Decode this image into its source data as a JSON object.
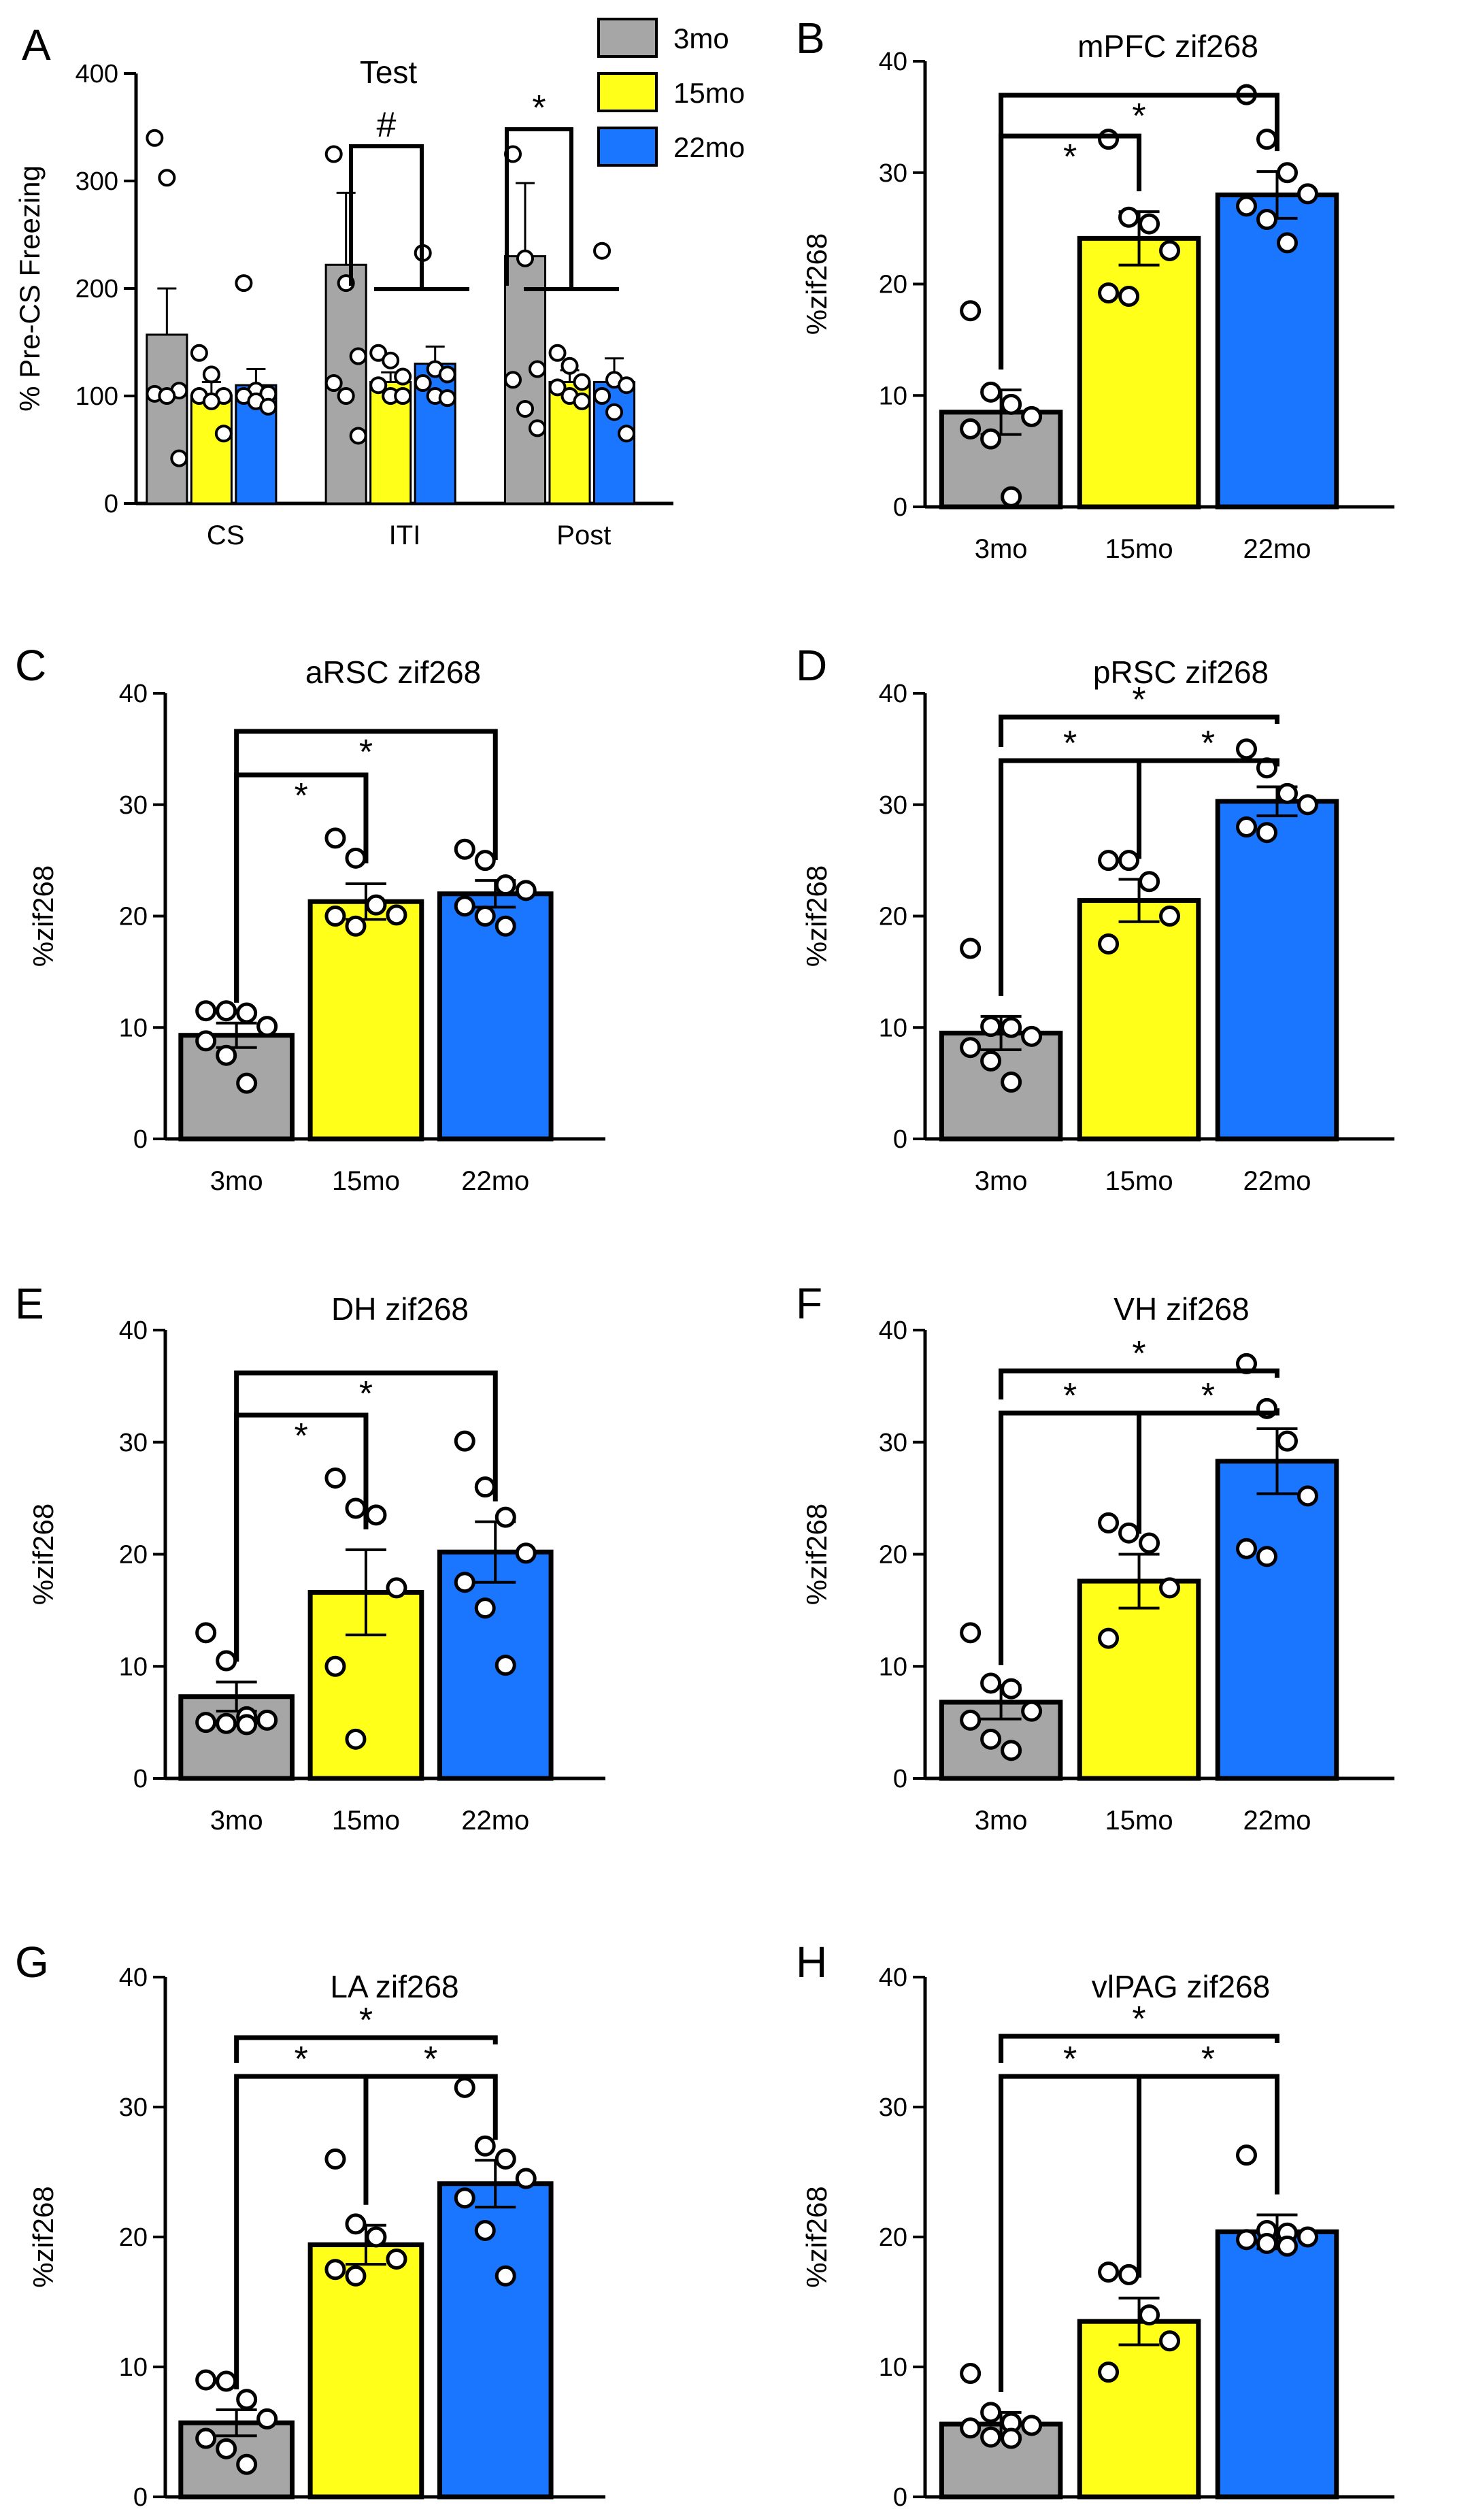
{
  "legend": [
    {
      "label": "3mo",
      "color": "#a6a6a6"
    },
    {
      "label": "15mo",
      "color": "#ffff1a"
    },
    {
      "label": "22mo",
      "color": "#1a75ff"
    }
  ],
  "chart_data": [
    {
      "panel": "A",
      "type": "bar",
      "title": "Test",
      "ylabel": "% Pre-CS Freezing",
      "ylim": [
        0,
        400
      ],
      "yticks": [
        "0",
        "100",
        "200",
        "300",
        "400"
      ],
      "categories": [
        "CS",
        "ITI",
        "Post"
      ],
      "series": [
        {
          "name": "3mo",
          "values": [
            157,
            222,
            230
          ],
          "sem": [
            43,
            67,
            68
          ],
          "points": [
            [
              340,
              303,
              105,
              102,
              100,
              42
            ],
            [
              325,
              205,
              137,
              112,
              100,
              63
            ],
            [
              325,
              228,
              125,
              115,
              88,
              70
            ]
          ]
        },
        {
          "name": "15mo",
          "values": [
            100,
            113,
            113
          ],
          "sem": [
            13,
            9,
            11
          ],
          "points": [
            [
              140,
              120,
              100,
              100,
              95,
              65
            ],
            [
              140,
              133,
              118,
              110,
              100,
              100
            ],
            [
              140,
              128,
              113,
              108,
              100,
              95
            ]
          ]
        },
        {
          "name": "22mo",
          "values": [
            110,
            130,
            113
          ],
          "sem": [
            15,
            16,
            22
          ],
          "points": [
            [
              205,
              105,
              102,
              100,
              95,
              90
            ],
            [
              233,
              125,
              120,
              112,
              100,
              98
            ],
            [
              235,
              115,
              110,
              100,
              85,
              65
            ]
          ]
        }
      ],
      "annotations": [
        "#",
        "*"
      ]
    },
    {
      "panel": "B",
      "type": "bar",
      "title": "mPFC zif268",
      "ylabel": "%zif268",
      "ylim": [
        0,
        40
      ],
      "yticks": [
        "0",
        "10",
        "20",
        "30",
        "40"
      ],
      "categories": [
        "3mo",
        "15mo",
        "22mo"
      ],
      "values": [
        8.5,
        24.1,
        28.0
      ],
      "sem": [
        2.0,
        2.4,
        2.1
      ],
      "points": [
        [
          17.6,
          10.3,
          9.2,
          8.1,
          7.0,
          6.1,
          0.9
        ],
        [
          33.0,
          26.0,
          25.4,
          23.0,
          19.2,
          18.9
        ],
        [
          37.0,
          33.0,
          30.0,
          28.1,
          27.0,
          25.8,
          23.7
        ]
      ],
      "annotations": [
        "*",
        "*"
      ]
    },
    {
      "panel": "C",
      "type": "bar",
      "title": "aRSC zif268",
      "ylabel": "%zif268",
      "ylim": [
        0,
        40
      ],
      "yticks": [
        "0",
        "10",
        "20",
        "30",
        "40"
      ],
      "categories": [
        "3mo",
        "15mo",
        "22mo"
      ],
      "values": [
        9.3,
        21.3,
        22.0
      ],
      "sem": [
        1.1,
        1.6,
        1.2
      ],
      "points": [
        [
          11.5,
          11.5,
          11.3,
          10.1,
          8.8,
          7.5,
          5.0
        ],
        [
          27.0,
          25.2,
          21.0,
          20.1,
          20.0,
          19.1
        ],
        [
          26.0,
          25.0,
          22.8,
          22.3,
          20.9,
          20.0,
          19.1
        ]
      ],
      "annotations": [
        "*",
        "*"
      ]
    },
    {
      "panel": "D",
      "type": "bar",
      "title": "pRSC zif268",
      "ylabel": "%zif268",
      "ylim": [
        0,
        40
      ],
      "yticks": [
        "0",
        "10",
        "20",
        "30",
        "40"
      ],
      "categories": [
        "3mo",
        "15mo",
        "22mo"
      ],
      "values": [
        9.5,
        21.4,
        30.3
      ],
      "sem": [
        1.5,
        1.9,
        1.3
      ],
      "points": [
        [
          17.1,
          10.1,
          10.0,
          9.2,
          8.2,
          7.0,
          5.1
        ],
        [
          25.0,
          25.0,
          23.1,
          20.0,
          17.5
        ],
        [
          35.0,
          33.3,
          31.0,
          30.0,
          28.0,
          27.5
        ]
      ],
      "annotations": [
        "*",
        "*",
        "*"
      ]
    },
    {
      "panel": "E",
      "type": "bar",
      "title": "DH zif268",
      "ylabel": "%zif268",
      "ylim": [
        0,
        40
      ],
      "yticks": [
        "0",
        "10",
        "20",
        "30",
        "40"
      ],
      "categories": [
        "3mo",
        "15mo",
        "22mo"
      ],
      "values": [
        7.3,
        16.6,
        20.2
      ],
      "sem": [
        1.3,
        3.8,
        2.7
      ],
      "points": [
        [
          13.0,
          10.5,
          5.5,
          5.2,
          5.0,
          4.9,
          4.8
        ],
        [
          26.8,
          24.1,
          23.5,
          17.0,
          10.0,
          3.5
        ],
        [
          30.1,
          26.0,
          23.3,
          20.1,
          17.5,
          15.2,
          10.1
        ]
      ],
      "annotations": [
        "*",
        "*"
      ]
    },
    {
      "panel": "F",
      "type": "bar",
      "title": "VH zif268",
      "ylabel": "%zif268",
      "ylim": [
        0,
        40
      ],
      "yticks": [
        "0",
        "10",
        "20",
        "30",
        "40"
      ],
      "categories": [
        "3mo",
        "15mo",
        "22mo"
      ],
      "values": [
        6.8,
        17.6,
        28.3
      ],
      "sem": [
        1.5,
        2.4,
        2.9
      ],
      "points": [
        [
          13.0,
          8.5,
          8.0,
          6.0,
          5.2,
          3.5,
          2.5
        ],
        [
          22.8,
          21.9,
          21.0,
          17.0,
          12.5
        ],
        [
          37.0,
          33.0,
          30.1,
          25.2,
          20.5,
          19.8
        ]
      ],
      "annotations": [
        "*",
        "*",
        "*"
      ]
    },
    {
      "panel": "G",
      "type": "bar",
      "title": "LA zif268",
      "ylabel": "%zif268",
      "ylim": [
        0,
        40
      ],
      "yticks": [
        "0",
        "10",
        "20",
        "30",
        "40"
      ],
      "categories": [
        "3mo",
        "15mo",
        "22mo"
      ],
      "values": [
        5.7,
        19.4,
        24.1
      ],
      "sem": [
        1.0,
        1.5,
        1.8
      ],
      "points": [
        [
          9.0,
          8.9,
          7.5,
          6.0,
          4.5,
          3.7,
          2.5
        ],
        [
          26.0,
          21.0,
          20.0,
          18.3,
          17.5,
          17.0
        ],
        [
          31.5,
          27.0,
          26.0,
          24.5,
          23.0,
          20.5,
          17.0
        ]
      ],
      "annotations": [
        "*",
        "*",
        "*"
      ]
    },
    {
      "panel": "H",
      "type": "bar",
      "title": "vlPAG zif268",
      "ylabel": "%zif268",
      "ylim": [
        0,
        40
      ],
      "yticks": [
        "0",
        "10",
        "20",
        "30",
        "40"
      ],
      "categories": [
        "3mo",
        "15mo",
        "22mo"
      ],
      "values": [
        5.6,
        13.5,
        20.4
      ],
      "sem": [
        0.9,
        1.8,
        1.3
      ],
      "points": [
        [
          9.5,
          6.5,
          5.7,
          5.5,
          5.3,
          4.6,
          4.5
        ],
        [
          17.3,
          17.1,
          14.0,
          12.0,
          9.6
        ],
        [
          26.3,
          20.5,
          20.3,
          20.0,
          19.8,
          19.5,
          19.3
        ]
      ],
      "annotations": [
        "*",
        "*",
        "*"
      ]
    }
  ]
}
